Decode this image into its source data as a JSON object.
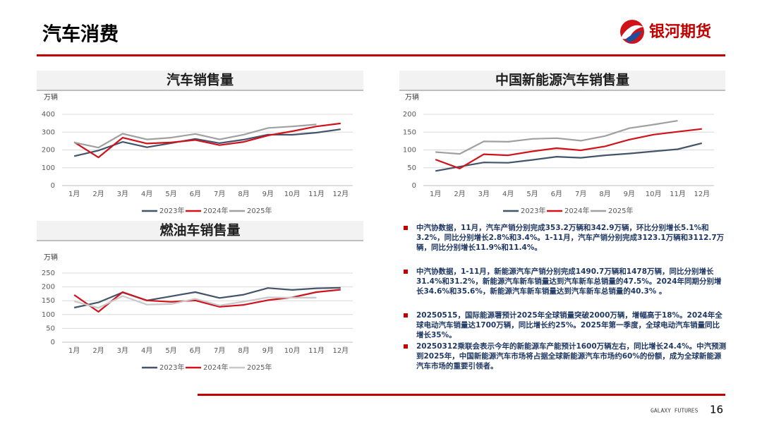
{
  "header": {
    "title": "汽车消费",
    "logo": "银河期货"
  },
  "chart_data": [
    {
      "type": "line",
      "title": "汽车销售量",
      "y_label": "万辆",
      "categories": [
        "1月",
        "2月",
        "3月",
        "4月",
        "5月",
        "6月",
        "7月",
        "8月",
        "9月",
        "10月",
        "11月",
        "12月"
      ],
      "series": [
        {
          "name": "2023年",
          "color": "#44546a",
          "values": [
            165,
            197,
            245,
            215,
            238,
            262,
            238,
            258,
            286,
            285,
            297,
            316
          ]
        },
        {
          "name": "2024年",
          "color": "#d0121b",
          "values": [
            244,
            158,
            269,
            236,
            242,
            256,
            227,
            245,
            281,
            305,
            332,
            349
          ]
        },
        {
          "name": "2025年",
          "color": "#a0a0a0",
          "values": [
            242,
            213,
            291,
            259,
            269,
            290,
            259,
            286,
            323,
            332,
            343,
            null
          ]
        }
      ],
      "ylim": [
        0,
        400
      ],
      "yticks": [
        0,
        100,
        200,
        300,
        400
      ],
      "grid": true,
      "legend": "bottom"
    },
    {
      "type": "line",
      "title": "中国新能源汽车销售量",
      "y_label": "万辆",
      "categories": [
        "1月",
        "2月",
        "3月",
        "4月",
        "5月",
        "6月",
        "7月",
        "8月",
        "9月",
        "10月",
        "11月",
        "12月"
      ],
      "series": [
        {
          "name": "2023年",
          "color": "#44546a",
          "values": [
            41,
            53,
            65,
            64,
            72,
            81,
            78,
            85,
            90,
            96,
            102,
            119
          ]
        },
        {
          "name": "2024年",
          "color": "#d0121b",
          "values": [
            73,
            48,
            88,
            85,
            96,
            105,
            99,
            110,
            129,
            143,
            151,
            159
          ]
        },
        {
          "name": "2025年",
          "color": "#a0a0a0",
          "values": [
            94,
            89,
            124,
            123,
            131,
            133,
            126,
            139,
            161,
            171,
            182,
            null
          ]
        }
      ],
      "ylim": [
        0,
        200
      ],
      "yticks": [
        0,
        50,
        100,
        150,
        200
      ],
      "grid": true,
      "legend": "bottom"
    },
    {
      "type": "line",
      "title": "燃油车销售量",
      "y_label": "万辆",
      "categories": [
        "1月",
        "2月",
        "3月",
        "4月",
        "5月",
        "6月",
        "7月",
        "8月",
        "9月",
        "10月",
        "11月",
        "12月"
      ],
      "series": [
        {
          "name": "2023年",
          "color": "#44546a",
          "values": [
            125,
            144,
            180,
            151,
            166,
            181,
            160,
            172,
            196,
            189,
            195,
            197
          ]
        },
        {
          "name": "2024年",
          "color": "#d0121b",
          "values": [
            171,
            110,
            181,
            151,
            146,
            151,
            128,
            135,
            152,
            162,
            181,
            190
          ]
        },
        {
          "name": "2025年",
          "color": "#c8c8c8",
          "values": [
            148,
            124,
            167,
            136,
            138,
            157,
            133,
            147,
            162,
            161,
            161,
            null
          ]
        }
      ],
      "ylim": [
        0,
        250
      ],
      "yticks": [
        0,
        50,
        100,
        150,
        200,
        250
      ],
      "grid": true,
      "legend": "bottom"
    }
  ],
  "bullets": [
    "中汽协数据，11月，汽车产销分别完成353.2万辆和342.9万辆，环比分别增长5.1%和3.2%，同比分别增长2.8%和3.4%。1-11月，汽车产销分别完成3123.1万辆和3112.7万辆，同比分别增长11.9%和11.4%。",
    "中汽协数据，1-11月，新能源汽车产销分别完成1490.7万辆和1478万辆，同比分别增长31.4%和31.2%，新能源汽车新车销量达到汽车新车总销量的47.5%。2024年同期分别增长34.6%和35.6%，新能源汽车新车销量达到汽车新车总销量的40.3% 。",
    "20250515，国际能源署预计2025年全球销量突破2000万辆，增幅高于18%。2024年全球电动汽车销量达1700万辆，同比增长约25%。2025年第一季度，全球电动汽车销量同比增长35%。",
    "20250312乘联会表示今年的新能源车产能预计1600万辆左右，同比增长24.4%。中汽预测到2025年，中国新能源汽车市场将占据全球新能源汽车市场约60%的份额，成为全球新能源汽车市场的重要引领者。"
  ],
  "footer": {
    "brand": "GALAXY FUTURES",
    "page": "16"
  }
}
